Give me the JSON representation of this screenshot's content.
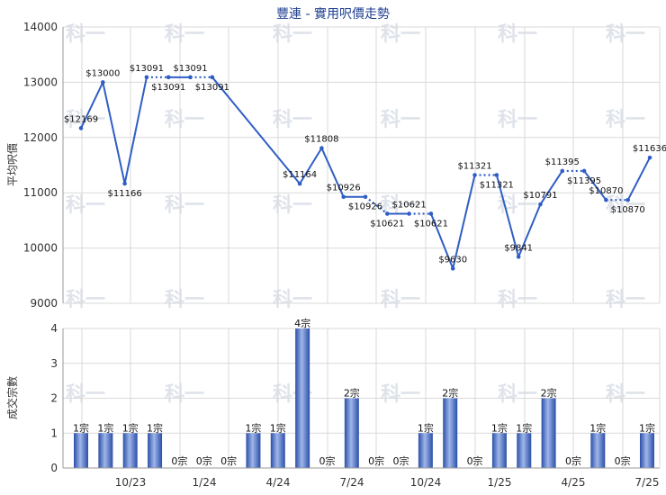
{
  "title": "豐連 - 實用呎價走勢",
  "watermark": "科一",
  "colors": {
    "line": "#2f5ec4",
    "bar_dark": "#2b4fa8",
    "bar_light": "#9fb6ea",
    "grid": "#d9d9d9",
    "axis": "#999999",
    "title": "#1f3f8f"
  },
  "chart_data": [
    {
      "type": "line",
      "ylabel": "平均呎價",
      "ylim": [
        9000,
        14000
      ],
      "yticks": [
        9000,
        10000,
        11000,
        12000,
        13000,
        14000
      ],
      "grid": true,
      "series": [
        {
          "values": [
            12169,
            13000,
            11166,
            13091,
            13091,
            13091,
            13091,
            null,
            null,
            null,
            11164,
            11808,
            10926,
            10926,
            10621,
            10621,
            10621,
            9630,
            11321,
            11321,
            9841,
            10791,
            11395,
            11395,
            10870,
            10870,
            11636
          ],
          "point_labels": [
            "$12169",
            "$13000",
            "$11166",
            "$13091",
            "$13091",
            "$13091",
            "$13091",
            "",
            "",
            "",
            "$11164",
            "$11808",
            "$10926",
            "$10926",
            "$10621",
            "$10621",
            "$10621",
            "$9630",
            "$11321",
            "$11321",
            "$9841",
            "$10791",
            "$11395",
            "$11395",
            "$10870",
            "$10870",
            "$11636"
          ]
        }
      ],
      "dotted_segments": [
        [
          3,
          4
        ],
        [
          5,
          6
        ],
        [
          13,
          14
        ],
        [
          15,
          16
        ],
        [
          18,
          19
        ],
        [
          22,
          23
        ],
        [
          24,
          25
        ]
      ]
    },
    {
      "type": "bar",
      "ylabel": "成交宗數",
      "ylim": [
        0,
        4
      ],
      "yticks": [
        0,
        1,
        2,
        3,
        4
      ],
      "grid": true,
      "x_tick_labels": [
        "10/23",
        "1/24",
        "4/24",
        "7/24",
        "10/24",
        "1/25",
        "4/25",
        "7/25"
      ],
      "values": [
        1,
        1,
        1,
        1,
        0,
        0,
        0,
        1,
        1,
        4,
        0,
        2,
        0,
        0,
        1,
        2,
        0,
        1,
        1,
        2,
        0,
        1,
        0,
        1
      ],
      "labels": [
        "1宗",
        "1宗",
        "1宗",
        "1宗",
        "0宗",
        "0宗",
        "0宗",
        "1宗",
        "1宗",
        "4宗",
        "0宗",
        "2宗",
        "0宗",
        "0宗",
        "1宗",
        "2宗",
        "0宗",
        "1宗",
        "1宗",
        "2宗",
        "0宗",
        "1宗",
        "0宗",
        "1宗"
      ]
    }
  ]
}
